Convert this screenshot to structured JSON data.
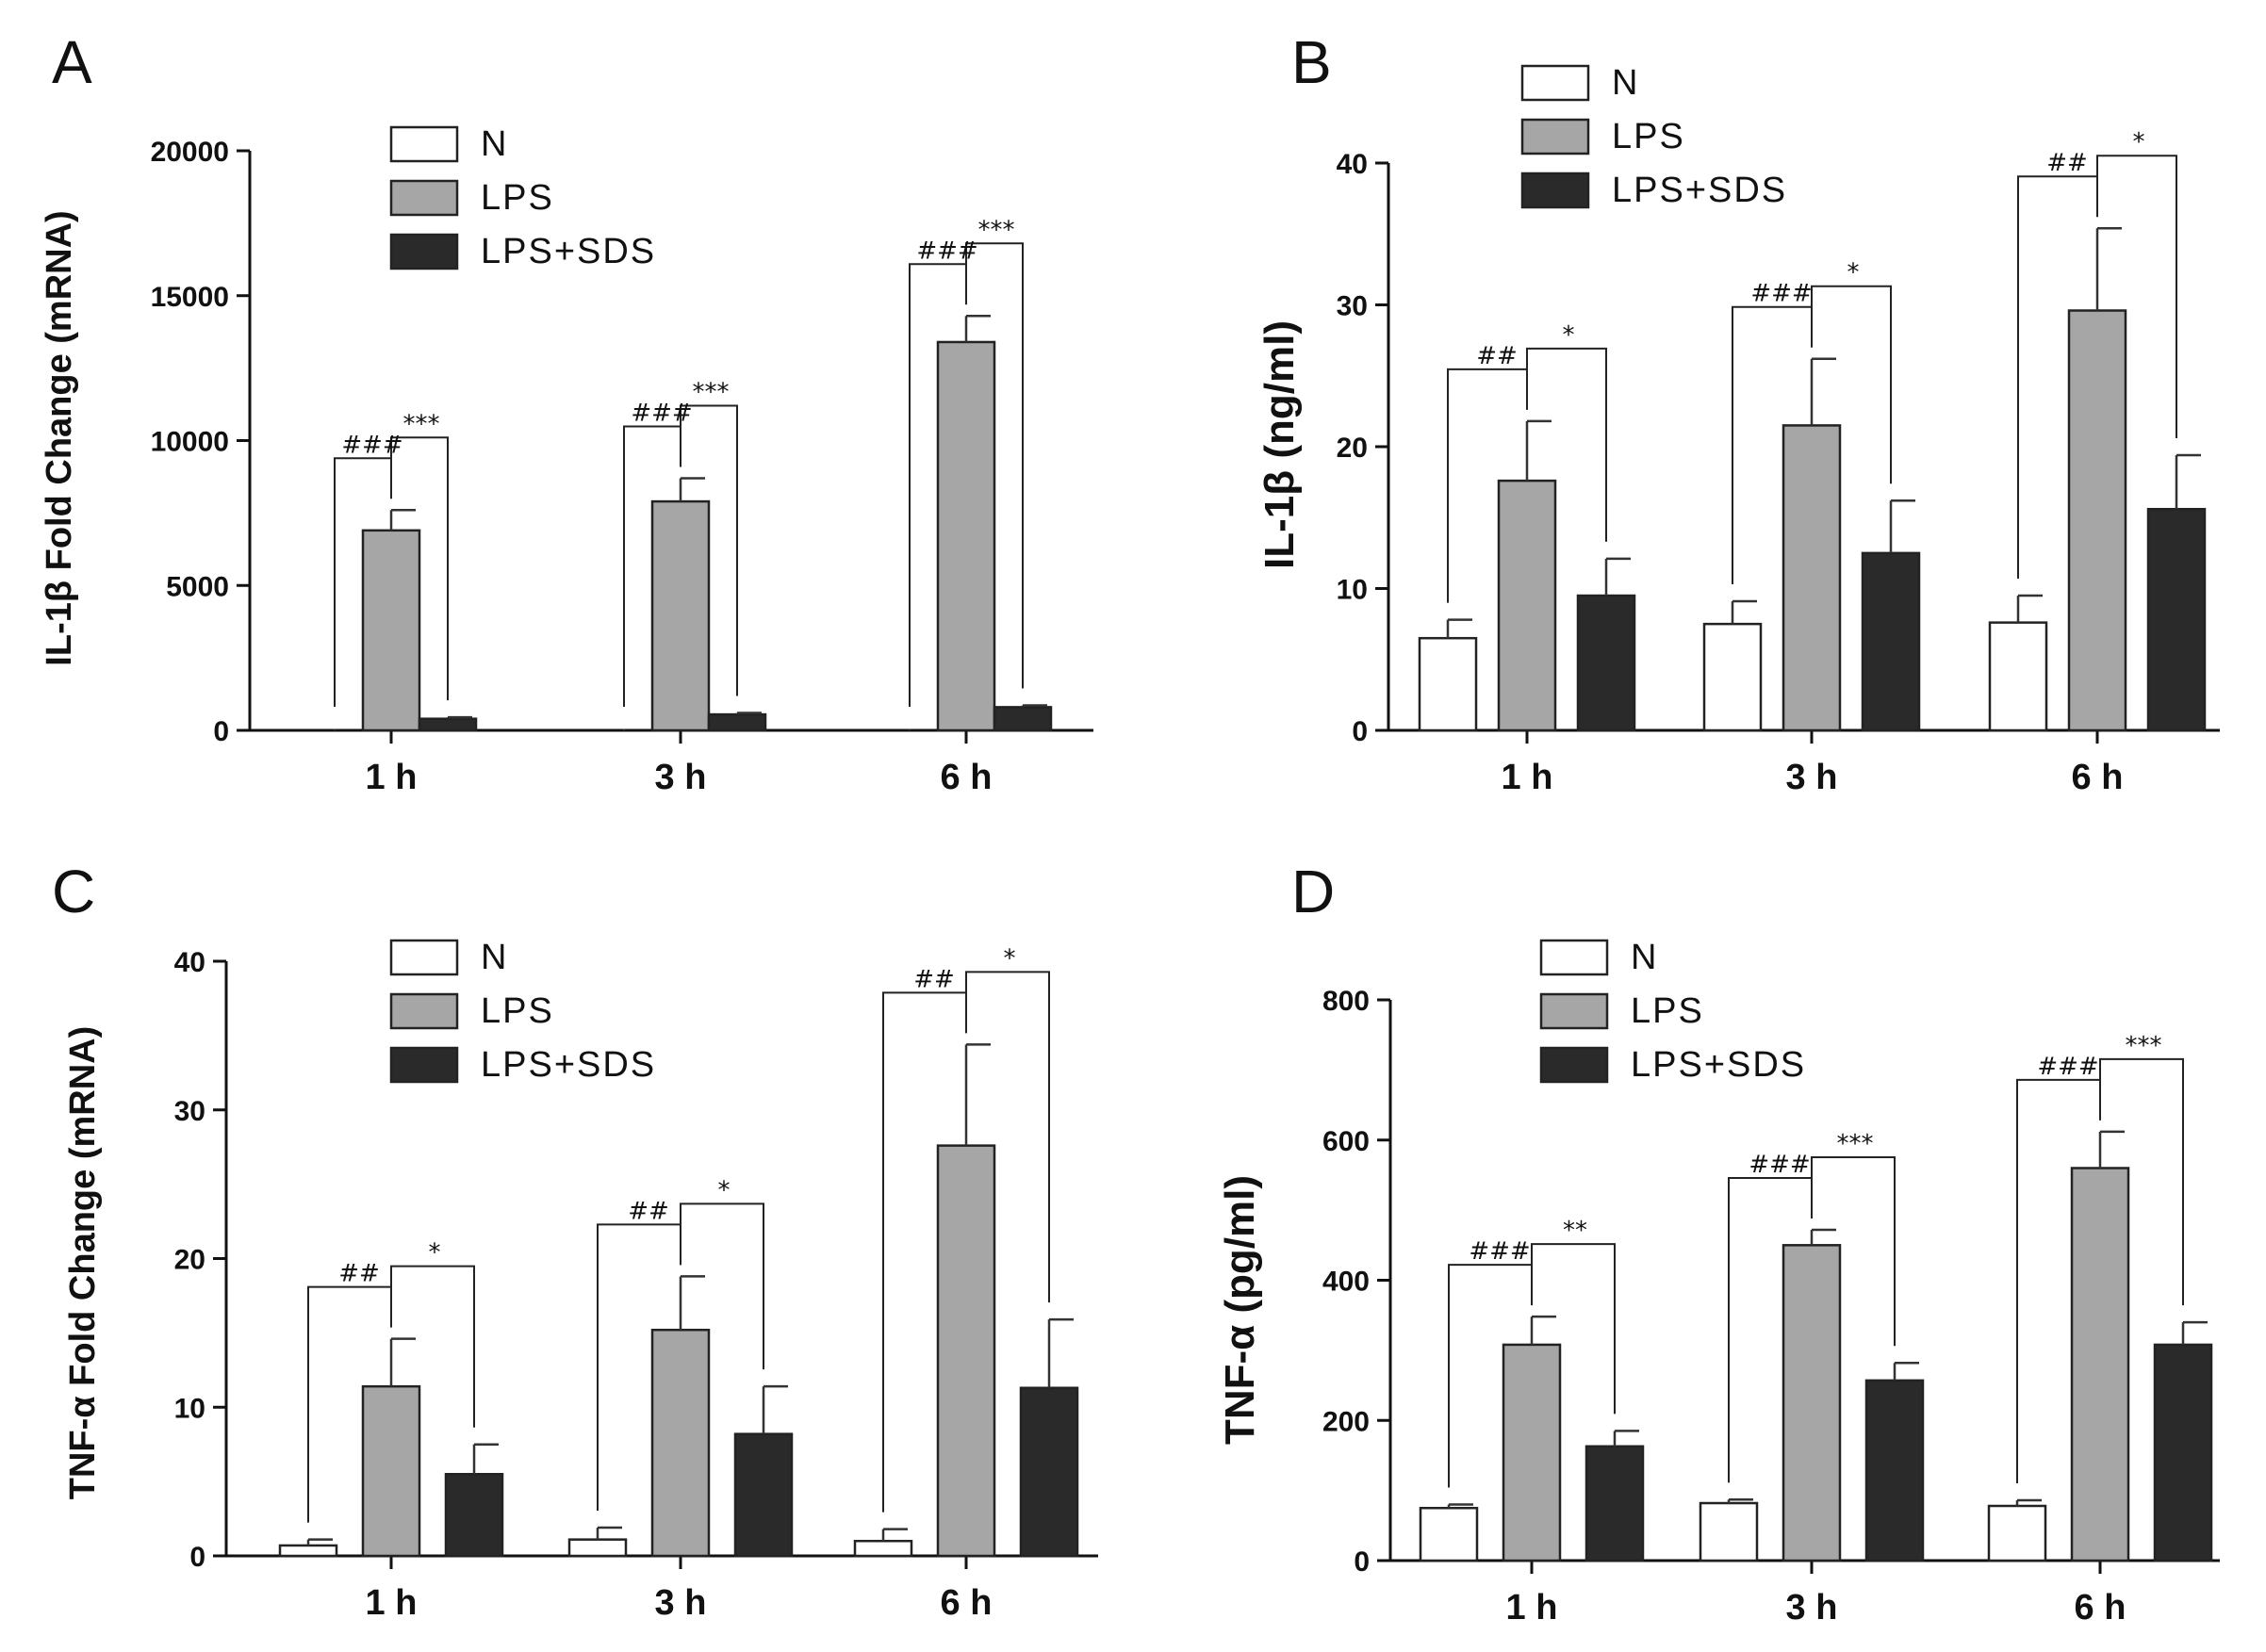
{
  "colors": {
    "N": "#ffffff",
    "LPS": "#a6a6a6",
    "LPS+SDS": "#2a2a2a"
  },
  "chart_data": [
    {
      "panel": "A",
      "type": "bar",
      "ylabel": "IL-1β Fold Change (mRNA)",
      "categories": [
        "1 h",
        "3 h",
        "6 h"
      ],
      "ylim": [
        0,
        20000
      ],
      "yticks": [
        "0",
        "5000",
        "10000",
        "15000",
        "20000"
      ],
      "ytick_values": [
        0,
        5000,
        10000,
        15000,
        20000
      ],
      "series": [
        {
          "name": "N",
          "values": [
            1,
            1,
            1
          ],
          "errors": [
            0,
            0,
            0
          ]
        },
        {
          "name": "LPS",
          "values": [
            6900,
            7900,
            13400
          ],
          "errors": [
            700,
            800,
            900
          ]
        },
        {
          "name": "LPS+SDS",
          "values": [
            400,
            550,
            800
          ],
          "errors": [
            50,
            50,
            60
          ]
        }
      ],
      "significance": [
        {
          "left": "###",
          "right": "***"
        },
        {
          "left": "###",
          "right": "***"
        },
        {
          "left": "###",
          "right": "***"
        }
      ]
    },
    {
      "panel": "B",
      "type": "bar",
      "ylabel": "IL-1β (ng/ml)",
      "categories": [
        "1 h",
        "3 h",
        "6 h"
      ],
      "ylim": [
        0,
        40
      ],
      "yticks": [
        "0",
        "10",
        "20",
        "30",
        "40"
      ],
      "ytick_values": [
        0,
        10,
        20,
        30,
        40
      ],
      "series": [
        {
          "name": "N",
          "values": [
            6.5,
            7.5,
            7.6
          ],
          "errors": [
            1.3,
            1.6,
            1.9
          ]
        },
        {
          "name": "LPS",
          "values": [
            17.6,
            21.5,
            29.6
          ],
          "errors": [
            4.2,
            4.7,
            5.8
          ]
        },
        {
          "name": "LPS+SDS",
          "values": [
            9.5,
            12.5,
            15.6
          ],
          "errors": [
            2.6,
            3.7,
            3.8
          ]
        }
      ],
      "significance": [
        {
          "left": "##",
          "right": "*"
        },
        {
          "left": "###",
          "right": "*"
        },
        {
          "left": "##",
          "right": "*"
        }
      ]
    },
    {
      "panel": "C",
      "type": "bar",
      "ylabel": "TNF-α Fold Change (mRNA)",
      "categories": [
        "1 h",
        "3 h",
        "6 h"
      ],
      "ylim": [
        0,
        40
      ],
      "yticks": [
        "0",
        "10",
        "20",
        "30",
        "40"
      ],
      "ytick_values": [
        0,
        10,
        20,
        30,
        40
      ],
      "series": [
        {
          "name": "N",
          "values": [
            0.7,
            1.1,
            1.0
          ],
          "errors": [
            0.4,
            0.8,
            0.8
          ]
        },
        {
          "name": "LPS",
          "values": [
            11.4,
            15.2,
            27.6
          ],
          "errors": [
            3.2,
            3.6,
            6.8
          ]
        },
        {
          "name": "LPS+SDS",
          "values": [
            5.5,
            8.2,
            11.3
          ],
          "errors": [
            2.0,
            3.2,
            4.6
          ]
        }
      ],
      "significance": [
        {
          "left": "##",
          "right": "*"
        },
        {
          "left": "##",
          "right": "*"
        },
        {
          "left": "##",
          "right": "*"
        }
      ]
    },
    {
      "panel": "D",
      "type": "bar",
      "ylabel": "TNF-α (pg/ml)",
      "categories": [
        "1 h",
        "3 h",
        "6 h"
      ],
      "ylim": [
        0,
        800
      ],
      "yticks": [
        "0",
        "200",
        "400",
        "600",
        "800"
      ],
      "ytick_values": [
        0,
        200,
        400,
        600,
        800
      ],
      "series": [
        {
          "name": "N",
          "values": [
            75,
            82,
            78
          ],
          "errors": [
            5,
            5,
            8
          ]
        },
        {
          "name": "LPS",
          "values": [
            308,
            450,
            560
          ],
          "errors": [
            40,
            22,
            52
          ]
        },
        {
          "name": "LPS+SDS",
          "values": [
            163,
            257,
            308
          ],
          "errors": [
            22,
            25,
            32
          ]
        }
      ],
      "significance": [
        {
          "left": "###",
          "right": "**"
        },
        {
          "left": "###",
          "right": "***"
        },
        {
          "left": "###",
          "right": "***"
        }
      ]
    }
  ],
  "legend": [
    "N",
    "LPS",
    "LPS+SDS"
  ]
}
